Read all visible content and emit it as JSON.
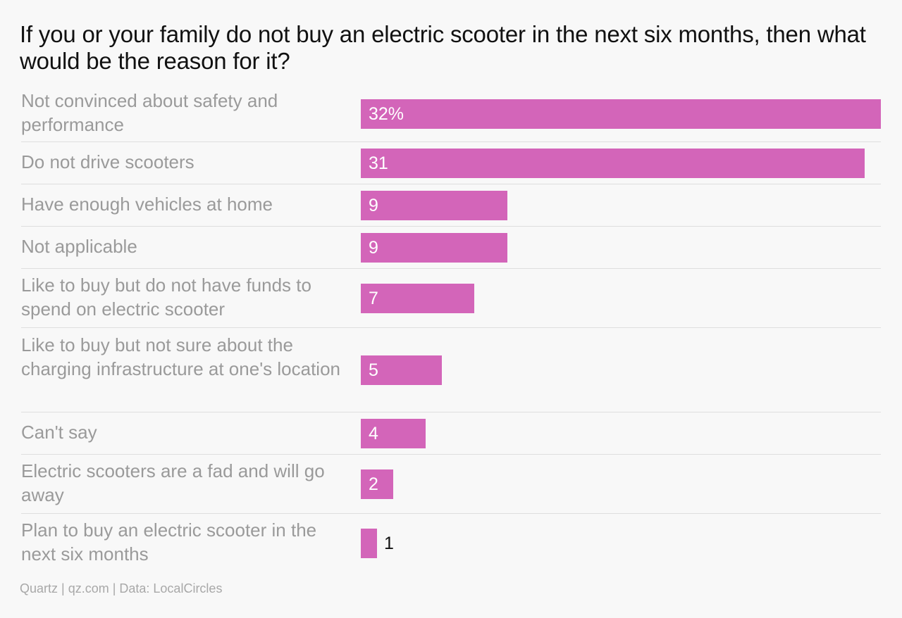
{
  "chart_data": {
    "type": "bar",
    "orientation": "horizontal",
    "title": "If you or your family do not buy an electric scooter in the next six months, then what would be the reason for it?",
    "categories": [
      "Not convinced about safety and performance",
      "Do not drive scooters",
      "Have enough vehicles at home",
      "Not applicable",
      "Like to buy but do not have funds to spend on electric scooter",
      "Like to buy but not sure about the charging infrastructure at one's location",
      "Can't say",
      "Electric scooters are a fad and will go away",
      "Plan to buy an electric scooter in the next six months"
    ],
    "values": [
      32,
      31,
      9,
      9,
      7,
      5,
      4,
      2,
      1
    ],
    "value_labels": [
      "32%",
      "31",
      "9",
      "9",
      "7",
      "5",
      "4",
      "2",
      "1"
    ],
    "xlim": [
      0,
      32
    ],
    "grid": false,
    "bar_color": "#d365b9"
  },
  "source": "Quartz | qz.com | Data: LocalCircles"
}
